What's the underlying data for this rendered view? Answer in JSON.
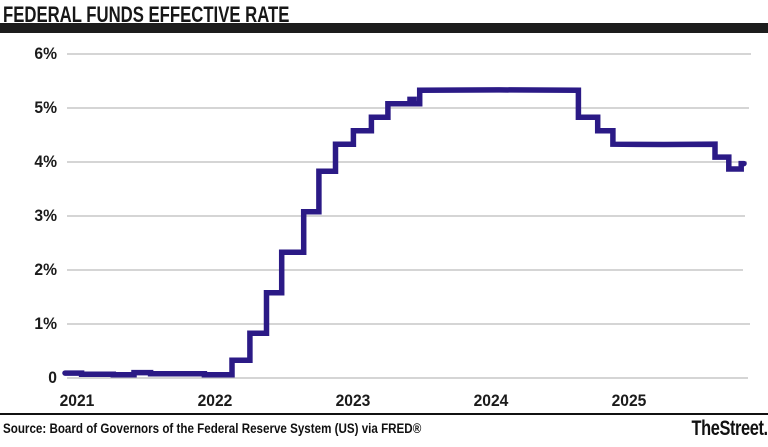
{
  "title": "FEDERAL FUNDS EFFECTIVE RATE",
  "source": "Source: Board of Governors of the Federal Reserve System (US) via FRED®",
  "brand": "TheStreet.",
  "colors": {
    "line": "#2b1a86",
    "grid": "#c7c7c7",
    "text": "#1b1b1b",
    "title_bar": "#1d1d1d",
    "footer_rule": "#111111",
    "background": "#ffffff"
  },
  "chart_data": {
    "type": "line",
    "step": "after",
    "title": "FEDERAL FUNDS EFFECTIVE RATE",
    "xlabel": "",
    "ylabel": "",
    "grid": true,
    "legend": false,
    "x_range": [
      2021.0,
      2026.0
    ],
    "y_range": [
      0,
      6.2
    ],
    "y_ticks": [
      {
        "value": 6,
        "label": "6%"
      },
      {
        "value": 5,
        "label": "5%"
      },
      {
        "value": 4,
        "label": "4%"
      },
      {
        "value": 3,
        "label": "3%"
      },
      {
        "value": 2,
        "label": "2%"
      },
      {
        "value": 1,
        "label": "1%"
      },
      {
        "value": 0,
        "label": "0"
      }
    ],
    "x_ticks": [
      {
        "value": 2021,
        "label": "2021"
      },
      {
        "value": 2022,
        "label": "2022"
      },
      {
        "value": 2023,
        "label": "2023"
      },
      {
        "value": 2024,
        "label": "2024"
      },
      {
        "value": 2025,
        "label": "2025"
      }
    ],
    "series": [
      {
        "name": "FEDERAL FUNDS EFFECTIVE RATE",
        "unit": "%",
        "step": "after",
        "end_x": 2025.92,
        "points": [
          [
            2021.0,
            0.09
          ],
          [
            2021.12,
            0.07
          ],
          [
            2021.35,
            0.06
          ],
          [
            2021.5,
            0.1
          ],
          [
            2021.62,
            0.08
          ],
          [
            2022.01,
            0.06
          ],
          [
            2022.21,
            0.33
          ],
          [
            2022.34,
            0.83
          ],
          [
            2022.46,
            1.58
          ],
          [
            2022.57,
            2.33
          ],
          [
            2022.73,
            3.08
          ],
          [
            2022.84,
            3.83
          ],
          [
            2022.96,
            4.33
          ],
          [
            2023.09,
            4.58
          ],
          [
            2023.22,
            4.83
          ],
          [
            2023.34,
            5.08
          ],
          [
            2023.5,
            5.16
          ],
          [
            2023.53,
            5.08
          ],
          [
            2023.57,
            5.33
          ],
          [
            2024.72,
            4.83
          ],
          [
            2024.86,
            4.58
          ],
          [
            2024.97,
            4.33
          ],
          [
            2025.71,
            4.09
          ],
          [
            2025.81,
            3.87
          ],
          [
            2025.9,
            3.97
          ]
        ]
      }
    ]
  }
}
